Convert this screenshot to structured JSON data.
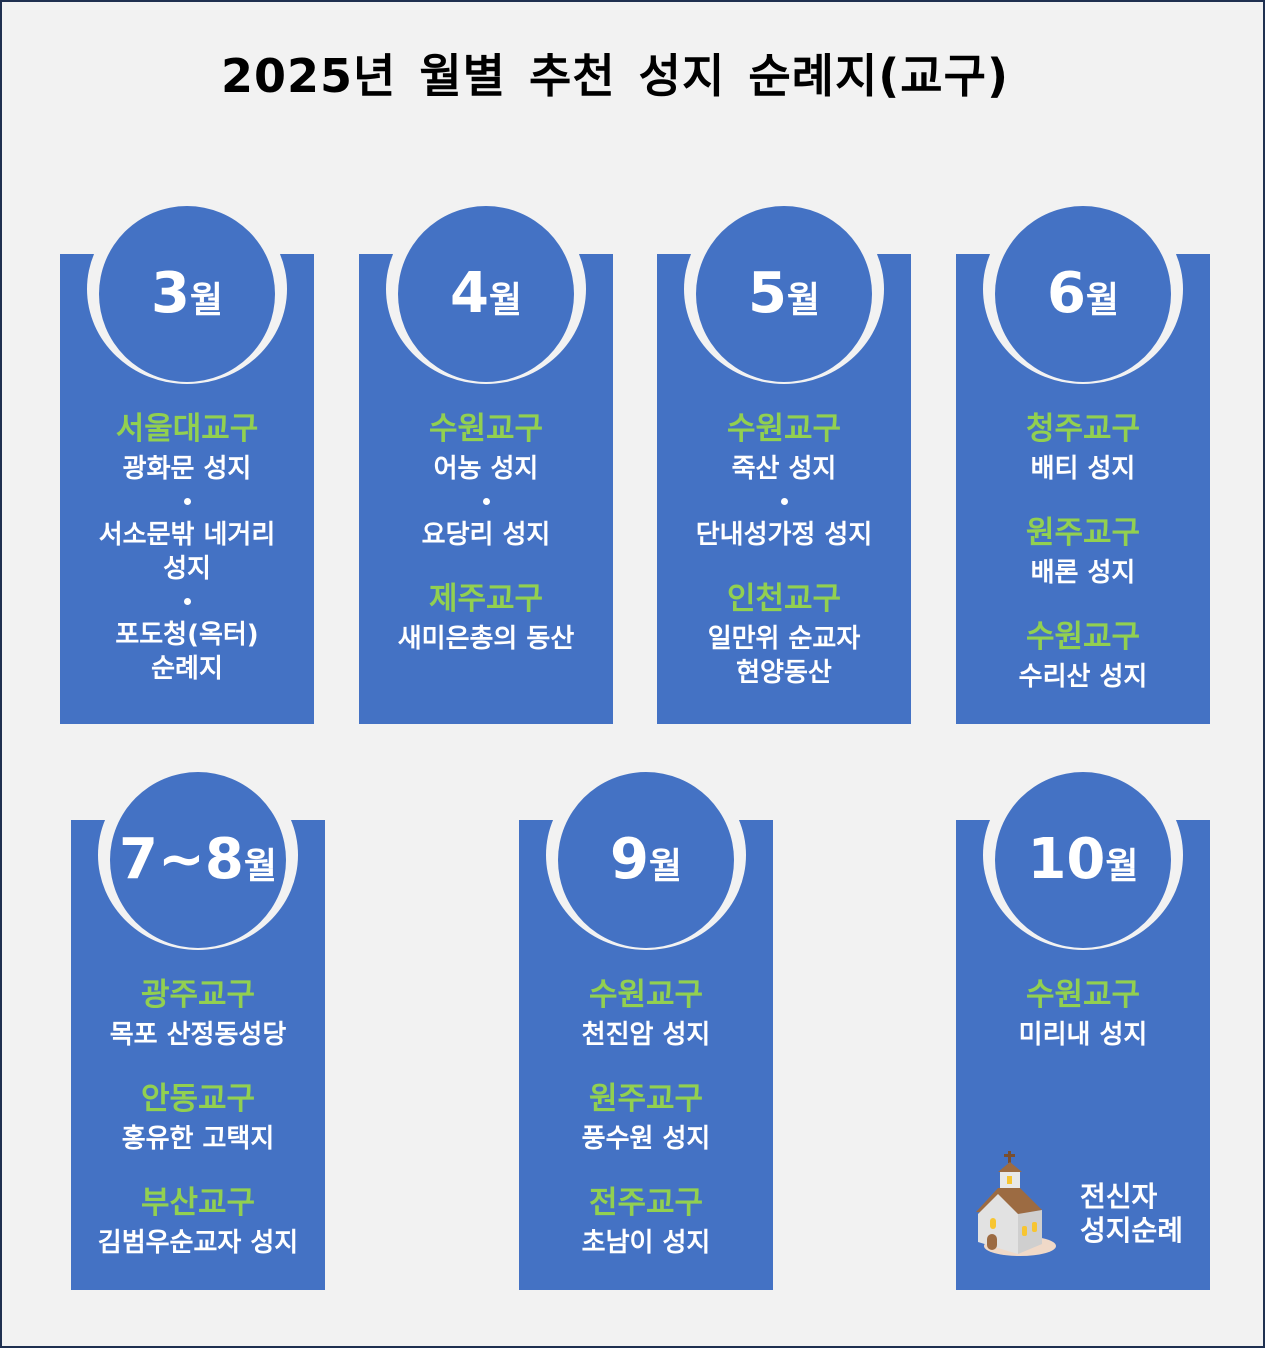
{
  "title": "2025년 월별   추천 성지 순례지(교구)",
  "colors": {
    "background": "#F2F2F2",
    "card": "#4472C4",
    "district": "#92D050",
    "text": "#FFFFFF"
  },
  "months": [
    {
      "num": "3",
      "unit": "월",
      "groups": [
        {
          "district": "서울대교구",
          "sites": [
            "광화문 성지",
            "•",
            "서소문밖 네거리",
            "성지",
            "•",
            "포도청(옥터)",
            "순례지"
          ]
        }
      ]
    },
    {
      "num": "4",
      "unit": "월",
      "groups": [
        {
          "district": "수원교구",
          "sites": [
            "어농 성지",
            "•",
            "요당리 성지"
          ]
        },
        {
          "district": "제주교구",
          "sites": [
            "새미은총의 동산"
          ]
        }
      ]
    },
    {
      "num": "5",
      "unit": "월",
      "groups": [
        {
          "district": "수원교구",
          "sites": [
            "죽산 성지",
            "•",
            "단내성가정 성지"
          ]
        },
        {
          "district": "인천교구",
          "sites": [
            "일만위 순교자",
            "현양동산"
          ]
        }
      ]
    },
    {
      "num": "6",
      "unit": "월",
      "groups": [
        {
          "district": "청주교구",
          "sites": [
            "배티 성지"
          ]
        },
        {
          "district": "원주교구",
          "sites": [
            "배론 성지"
          ]
        },
        {
          "district": "수원교구",
          "sites": [
            "수리산 성지"
          ]
        }
      ]
    },
    {
      "num": "7~8",
      "unit": "월",
      "groups": [
        {
          "district": "광주교구",
          "sites": [
            "목포 산정동성당"
          ]
        },
        {
          "district": "안동교구",
          "sites": [
            "홍유한 고택지"
          ]
        },
        {
          "district": "부산교구",
          "sites": [
            "김범우순교자 성지"
          ]
        }
      ]
    },
    {
      "num": "9",
      "unit": "월",
      "groups": [
        {
          "district": "수원교구",
          "sites": [
            "천진암 성지"
          ]
        },
        {
          "district": "원주교구",
          "sites": [
            "풍수원 성지"
          ]
        },
        {
          "district": "전주교구",
          "sites": [
            "초남이 성지"
          ]
        }
      ]
    },
    {
      "num": "10",
      "unit": "월",
      "groups": [
        {
          "district": "수원교구",
          "sites": [
            "미리내 성지"
          ]
        }
      ],
      "badge": {
        "icon": "church-icon",
        "line1": "전신자",
        "line2": "성지순례"
      }
    }
  ]
}
